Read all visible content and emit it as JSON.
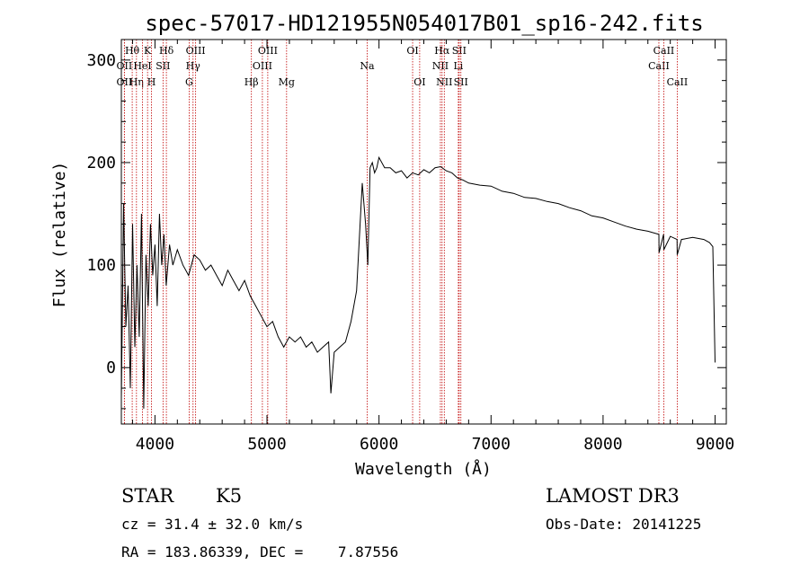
{
  "chart_data": {
    "type": "line",
    "title": "spec-57017-HD121955N054017B01_sp16-242.fits",
    "xlabel": "Wavelength (Å)",
    "ylabel": "Flux (relative)",
    "xlim": [
      3700,
      9100
    ],
    "ylim": [
      -55,
      320
    ],
    "xticks": [
      4000,
      5000,
      6000,
      7000,
      8000,
      9000
    ],
    "yticks": [
      0,
      100,
      200,
      300
    ],
    "grid": false,
    "series": [
      {
        "x": [
          3700,
          3720,
          3740,
          3760,
          3780,
          3800,
          3820,
          3840,
          3860,
          3880,
          3900,
          3920,
          3940,
          3960,
          3980,
          4000,
          4020,
          4040,
          4060,
          4080,
          4100,
          4130,
          4160,
          4200,
          4250,
          4300,
          4350,
          4400,
          4450,
          4500,
          4550,
          4600,
          4650,
          4700,
          4750,
          4800,
          4850,
          4900,
          4950,
          5000,
          5050,
          5100,
          5150,
          5200,
          5250,
          5300,
          5350,
          5400,
          5450,
          5500,
          5550,
          5570,
          5600,
          5650,
          5700,
          5750,
          5800,
          5850,
          5880,
          5900,
          5920,
          5940,
          5960,
          5980,
          6000,
          6050,
          6100,
          6150,
          6200,
          6250,
          6300,
          6350,
          6400,
          6450,
          6500,
          6550,
          6600,
          6650,
          6700,
          6750,
          6800,
          6900,
          7000,
          7100,
          7200,
          7300,
          7400,
          7500,
          7600,
          7700,
          7800,
          7900,
          8000,
          8100,
          8200,
          8300,
          8400,
          8498,
          8500,
          8540,
          8542,
          8600,
          8660,
          8662,
          8700,
          8800,
          8900,
          8950,
          8980,
          9000
        ],
        "values": [
          -30,
          160,
          40,
          80,
          -20,
          140,
          20,
          100,
          30,
          150,
          -40,
          110,
          60,
          140,
          90,
          120,
          60,
          150,
          100,
          130,
          80,
          120,
          100,
          115,
          100,
          90,
          110,
          105,
          95,
          100,
          90,
          80,
          95,
          85,
          75,
          85,
          70,
          60,
          50,
          40,
          45,
          30,
          20,
          30,
          25,
          30,
          20,
          25,
          15,
          20,
          25,
          -25,
          15,
          20,
          25,
          45,
          75,
          180,
          140,
          100,
          195,
          200,
          190,
          195,
          205,
          195,
          195,
          190,
          192,
          185,
          190,
          188,
          193,
          190,
          195,
          196,
          192,
          190,
          185,
          183,
          180,
          178,
          177,
          172,
          170,
          166,
          165,
          162,
          160,
          156,
          153,
          148,
          146,
          142,
          138,
          135,
          133,
          130,
          112,
          130,
          115,
          128,
          125,
          110,
          125,
          127,
          125,
          122,
          118,
          5
        ]
      }
    ],
    "spectral_lines": [
      {
        "label": "Hθ",
        "wl": 3797,
        "row": 0
      },
      {
        "label": "OII",
        "wl": 3727,
        "row": 1
      },
      {
        "label": "OII",
        "wl": 3727,
        "row": 2
      },
      {
        "label": "Hη",
        "wl": 3835,
        "row": 2
      },
      {
        "label": "HeI",
        "wl": 3889,
        "row": 1
      },
      {
        "label": "K",
        "wl": 3934,
        "row": 0
      },
      {
        "label": "H",
        "wl": 3969,
        "row": 2
      },
      {
        "label": "SII",
        "wl": 4072,
        "row": 1
      },
      {
        "label": "Hδ",
        "wl": 4102,
        "row": 0
      },
      {
        "label": "G",
        "wl": 4305,
        "row": 2
      },
      {
        "label": "Hγ",
        "wl": 4340,
        "row": 1
      },
      {
        "label": "OIII",
        "wl": 4363,
        "row": 0
      },
      {
        "label": "Hβ",
        "wl": 4861,
        "row": 2
      },
      {
        "label": "OIII",
        "wl": 4959,
        "row": 1
      },
      {
        "label": "OIII",
        "wl": 5007,
        "row": 0
      },
      {
        "label": "Mg",
        "wl": 5175,
        "row": 2
      },
      {
        "label": "Na",
        "wl": 5894,
        "row": 1
      },
      {
        "label": "OI",
        "wl": 6300,
        "row": 0
      },
      {
        "label": "OI",
        "wl": 6363,
        "row": 2
      },
      {
        "label": "NII",
        "wl": 6548,
        "row": 1
      },
      {
        "label": "Hα",
        "wl": 6563,
        "row": 0
      },
      {
        "label": "NII",
        "wl": 6583,
        "row": 2
      },
      {
        "label": "Li",
        "wl": 6708,
        "row": 1
      },
      {
        "label": "SII",
        "wl": 6716,
        "row": 0
      },
      {
        "label": "SII",
        "wl": 6731,
        "row": 2
      },
      {
        "label": "CaII",
        "wl": 8498,
        "row": 1
      },
      {
        "label": "CaII",
        "wl": 8542,
        "row": 0
      },
      {
        "label": "CaII",
        "wl": 8662,
        "row": 2
      }
    ],
    "line_color": "#c00000"
  },
  "info": {
    "object_class": "STAR",
    "subclass": "K5",
    "survey": "LAMOST DR3",
    "redshift": "cz = 31.4 ± 32.0 km/s",
    "obs_date": "Obs-Date: 20141225",
    "coords": "RA = 183.86339, DEC =    7.87556"
  }
}
